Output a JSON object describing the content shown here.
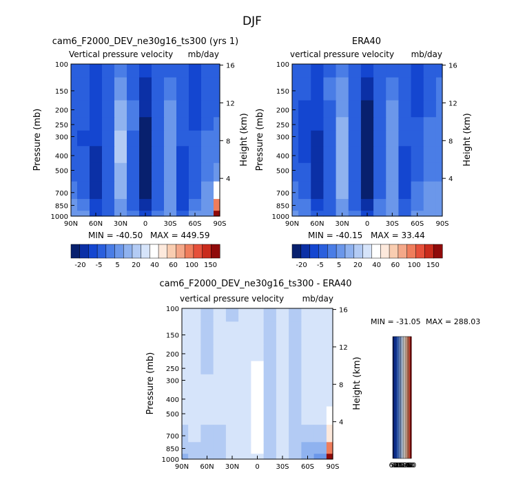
{
  "figure": {
    "title": "DJF"
  },
  "palette": {
    "blue_ramp": [
      "#08206e",
      "#0b30a6",
      "#1446d0",
      "#2a5fdd",
      "#4a7de6",
      "#6b97ea",
      "#8fb2ef",
      "#b3cbf4",
      "#d6e4fa"
    ],
    "warm_ramp": [
      "#fde9dc",
      "#f9cdb1",
      "#f4a889",
      "#ef7d5c",
      "#e6503a",
      "#c92b1c",
      "#8f0a0a"
    ],
    "white": "#ffffff"
  },
  "chart_data": [
    {
      "id": "model",
      "type": "heatmap",
      "title": "cam6_F2000_DEV_ne30g16_ts300 (yrs 1)",
      "subtitle_left": "Vertical pressure velocity",
      "subtitle_right": "mb/day",
      "ylabel": "Pressure (mb)",
      "y2label": "Height (km)",
      "x_ticks": [
        "90N",
        "60N",
        "30N",
        "0",
        "30S",
        "60S",
        "90S"
      ],
      "y_ticks": [
        "100",
        "150",
        "200",
        "250",
        "300",
        "400",
        "500",
        "700",
        "850",
        "1000"
      ],
      "y2_ticks": [
        "16",
        "12",
        "8",
        "4"
      ],
      "stats": {
        "min_label": "MIN = -40.50",
        "max_label": "MAX = 449.59"
      },
      "colorbar_labels": [
        "-20",
        "-5",
        "5",
        "20",
        "40",
        "60",
        "100",
        "150"
      ],
      "x": [
        90,
        75,
        60,
        45,
        30,
        15,
        0,
        -15,
        -30,
        -45,
        -60,
        -75,
        -90
      ],
      "y": [
        100,
        150,
        200,
        250,
        300,
        400,
        500,
        700,
        850,
        1000
      ],
      "values": [
        [
          -8,
          -9,
          -12,
          -10,
          -2,
          -8,
          -14,
          -10,
          -6,
          -9,
          -12,
          -8,
          -6
        ],
        [
          -8,
          -9,
          -12,
          -8,
          3,
          -6,
          -16,
          -8,
          -3,
          -8,
          -12,
          -8,
          -6
        ],
        [
          -9,
          -10,
          -13,
          -7,
          6,
          -5,
          -20,
          -8,
          0,
          -8,
          -12,
          -7,
          -6
        ],
        [
          -9,
          -10,
          -14,
          -8,
          8,
          -5,
          -24,
          -8,
          2,
          -8,
          -11,
          -6,
          -5
        ],
        [
          -9,
          -11,
          -15,
          -8,
          10,
          -6,
          -28,
          -9,
          3,
          -9,
          -10,
          -5,
          -4
        ],
        [
          -8,
          -10,
          -17,
          -8,
          11,
          -7,
          -30,
          -10,
          4,
          -11,
          -9,
          -3,
          -2
        ],
        [
          -7,
          -8,
          -17,
          -9,
          9,
          -8,
          -28,
          -10,
          4,
          -12,
          -8,
          -2,
          0
        ],
        [
          -5,
          -6,
          -16,
          -10,
          6,
          -8,
          -24,
          -8,
          3,
          -12,
          -6,
          0,
          20
        ],
        [
          0,
          -4,
          -14,
          -10,
          3,
          -7,
          -20,
          -6,
          2,
          -12,
          -4,
          2,
          60
        ],
        [
          2,
          0,
          -12,
          -8,
          2,
          -4,
          -14,
          -4,
          2,
          -10,
          0,
          4,
          150
        ]
      ]
    },
    {
      "id": "obs",
      "type": "heatmap",
      "title": "ERA40",
      "subtitle_left": "vertical pressure velocity",
      "subtitle_right": "mb/day",
      "ylabel": "Pressure (mb)",
      "y2label": "Height (km)",
      "x_ticks": [
        "90N",
        "60N",
        "30N",
        "0",
        "30S",
        "60S",
        "90S"
      ],
      "y_ticks": [
        "100",
        "150",
        "200",
        "250",
        "300",
        "400",
        "500",
        "700",
        "850",
        "1000"
      ],
      "y2_ticks": [
        "16",
        "12",
        "8",
        "4"
      ],
      "stats": {
        "min_label": "MIN = -40.15",
        "max_label": "MAX = 33.44"
      },
      "colorbar_labels": [
        "-20",
        "-5",
        "5",
        "20",
        "40",
        "60",
        "100",
        "150"
      ],
      "x": [
        90,
        75,
        60,
        45,
        30,
        15,
        0,
        -15,
        -30,
        -45,
        -60,
        -75,
        -90
      ],
      "y": [
        100,
        150,
        200,
        250,
        300,
        400,
        500,
        700,
        850,
        1000
      ],
      "values": [
        [
          -8,
          -10,
          -12,
          -6,
          -4,
          -10,
          -15,
          -8,
          -6,
          -10,
          -11,
          -8,
          -6
        ],
        [
          -8,
          -10,
          -12,
          -5,
          1,
          -8,
          -17,
          -6,
          -3,
          -9,
          -11,
          -7,
          -5
        ],
        [
          -9,
          -11,
          -14,
          -6,
          4,
          -7,
          -21,
          -6,
          0,
          -9,
          -11,
          -6,
          -5
        ],
        [
          -9,
          -12,
          -15,
          -7,
          6,
          -7,
          -25,
          -7,
          1,
          -9,
          -10,
          -5,
          -4
        ],
        [
          -10,
          -13,
          -17,
          -8,
          8,
          -8,
          -29,
          -8,
          2,
          -10,
          -9,
          -4,
          -3
        ],
        [
          -9,
          -12,
          -19,
          -8,
          9,
          -9,
          -31,
          -9,
          3,
          -11,
          -8,
          -3,
          -2
        ],
        [
          -8,
          -10,
          -19,
          -9,
          8,
          -9,
          -29,
          -9,
          3,
          -12,
          -7,
          -2,
          -1
        ],
        [
          -5,
          -7,
          -17,
          -9,
          5,
          -9,
          -25,
          -7,
          2,
          -11,
          -5,
          0,
          1
        ],
        [
          -1,
          -4,
          -14,
          -8,
          2,
          -7,
          -20,
          -5,
          1,
          -10,
          -3,
          2,
          3
        ],
        [
          2,
          -1,
          -10,
          -6,
          1,
          -4,
          -13,
          -3,
          1,
          -7,
          0,
          3,
          3
        ]
      ]
    },
    {
      "id": "diff",
      "type": "heatmap",
      "title": "cam6_F2000_DEV_ne30g16_ts300 - ERA40",
      "subtitle_left": "vertical pressure velocity",
      "subtitle_right": "mb/day",
      "ylabel": "Pressure (mb)",
      "y2label": "Height (km)",
      "x_ticks": [
        "90N",
        "60N",
        "30N",
        "0",
        "30S",
        "60S",
        "90S"
      ],
      "y_ticks": [
        "100",
        "150",
        "200",
        "250",
        "300",
        "400",
        "500",
        "700",
        "850",
        "1000"
      ],
      "y2_ticks": [
        "16",
        "12",
        "8",
        "4"
      ],
      "stats": {
        "min_label": "MIN = -31.05",
        "max_label": "MAX = 288.03"
      },
      "colorbar_labels": [
        "60",
        "50",
        "40",
        "30",
        "20",
        "10",
        "5",
        "0",
        "-5",
        "-10",
        "-20",
        "-30",
        "-40",
        "-50",
        "-60"
      ],
      "x": [
        90,
        75,
        60,
        45,
        30,
        15,
        0,
        -15,
        -30,
        -45,
        -60,
        -75,
        -90
      ],
      "y": [
        100,
        150,
        200,
        250,
        300,
        400,
        500,
        700,
        850,
        1000
      ],
      "values": [
        [
          0,
          1,
          -2,
          2,
          -1,
          1,
          1,
          -2,
          0,
          -2,
          1,
          0,
          0
        ],
        [
          0,
          1,
          -2,
          2,
          1,
          1,
          2,
          -2,
          0,
          -2,
          1,
          0,
          0
        ],
        [
          0,
          1,
          -1,
          2,
          2,
          2,
          4,
          -2,
          0,
          -2,
          1,
          0,
          0
        ],
        [
          0,
          2,
          -1,
          1,
          2,
          2,
          6,
          -2,
          1,
          -2,
          1,
          0,
          0
        ],
        [
          0,
          2,
          0,
          1,
          2,
          3,
          8,
          -2,
          1,
          -2,
          1,
          0,
          1
        ],
        [
          1,
          2,
          1,
          1,
          2,
          3,
          9,
          -1,
          1,
          -2,
          1,
          0,
          2
        ],
        [
          1,
          2,
          1,
          1,
          2,
          3,
          8,
          -1,
          1,
          -2,
          1,
          0,
          5
        ],
        [
          -2,
          0,
          -1,
          -2,
          1,
          2,
          7,
          -1,
          1,
          -3,
          -2,
          -4,
          15
        ],
        [
          -4,
          -3,
          -3,
          -2,
          1,
          1,
          5,
          -1,
          1,
          -4,
          -6,
          -10,
          40
        ],
        [
          -6,
          -4,
          -3,
          -2,
          1,
          1,
          3,
          -1,
          1,
          -4,
          -8,
          -14,
          100
        ]
      ]
    }
  ]
}
